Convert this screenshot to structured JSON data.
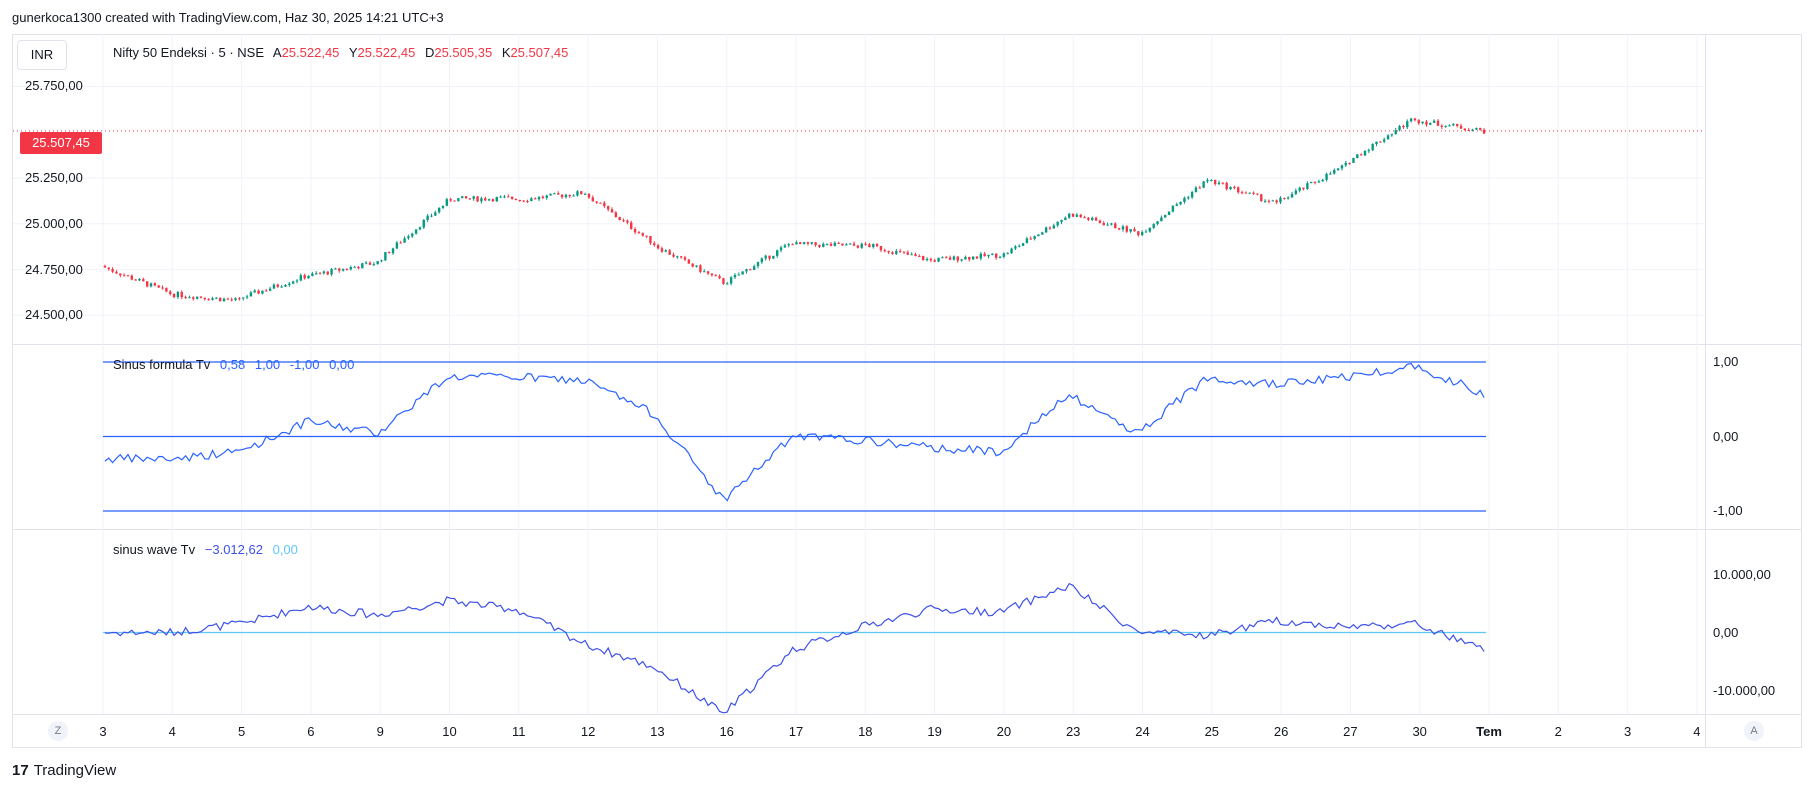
{
  "header": {
    "text": "gunerkoca1300 created with TradingView.com, Haz 30, 2025 14:21 UTC+3"
  },
  "currency_button": "INR",
  "main_legend": {
    "symbol": "Nifty 50 Endeksi · 5 · NSE",
    "open_label": "A",
    "open": "25.522,45",
    "high_label": "Y",
    "high": "25.522,45",
    "low_label": "D",
    "low": "25.505,35",
    "close_label": "K",
    "close": "25.507,45"
  },
  "last_price_badge": "25.507,45",
  "colors": {
    "up": "#089981",
    "down": "#f23645",
    "indicator": "#2962ff",
    "wave": "#3d51e8",
    "wave_zero": "#5cc9f5"
  },
  "sinus_formula_legend": {
    "name": "Sinus formula Tv",
    "v1": "0,58",
    "v2": "1,00",
    "v3": "-1,00",
    "v4": "0,00"
  },
  "sinus_wave_legend": {
    "name": "sinus wave Tv",
    "v1": "−3.012,62",
    "v2": "0,00"
  },
  "time_axis": {
    "timezone_button": "Z",
    "auto_button": "A"
  },
  "brand": {
    "logo_text": "17",
    "name": "TradingView"
  },
  "chart_data": [
    {
      "type": "candlestick",
      "title": "Nifty 50 Endeksi · 5 · NSE",
      "x_labels": [
        "3",
        "4",
        "5",
        "6",
        "9",
        "10",
        "11",
        "12",
        "13",
        "16",
        "17",
        "18",
        "19",
        "20",
        "23",
        "24",
        "25",
        "26",
        "27",
        "30",
        "Tem",
        "2",
        "3",
        "4"
      ],
      "y_tick_labels": [
        "25.750,00",
        "25.250,00",
        "25.000,00",
        "24.750,00",
        "24.500,00"
      ],
      "y_ticks": [
        25750,
        25250,
        25000,
        24750,
        24500
      ],
      "ylim": [
        24420,
        25960
      ],
      "last_price": 25507.45,
      "session_closes": [
        24620,
        24580,
        24720,
        24790,
        25120,
        25140,
        25170,
        24890,
        24680,
        24900,
        24880,
        24800,
        24830,
        25050,
        24950,
        25240,
        25110,
        25320,
        25580,
        25507
      ]
    },
    {
      "type": "line",
      "title": "Sinus formula Tv",
      "y_tick_labels": [
        "1,00",
        "0,00",
        "-1,00"
      ],
      "levels": [
        1.0,
        0.0,
        -1.0
      ],
      "ylim": [
        -1.1,
        1.1
      ],
      "session_values": [
        -0.3,
        -0.2,
        0.2,
        0.05,
        0.8,
        0.8,
        0.75,
        0.3,
        -0.85,
        0.0,
        -0.05,
        -0.15,
        -0.2,
        0.55,
        0.05,
        0.8,
        0.7,
        0.8,
        0.95,
        0.58
      ]
    },
    {
      "type": "line",
      "title": "sinus wave Tv",
      "y_tick_labels": [
        "10.000,00",
        "0,00",
        "-10.000,00"
      ],
      "y_ticks": [
        10000,
        0,
        -10000
      ],
      "ylim": [
        -17000,
        11500
      ],
      "session_values": [
        0,
        1500,
        4500,
        3000,
        5500,
        4000,
        -2000,
        -6000,
        -14000,
        -3000,
        1000,
        4000,
        3500,
        8000,
        0,
        -500,
        2000,
        1000,
        1500,
        -3012.62
      ]
    }
  ]
}
